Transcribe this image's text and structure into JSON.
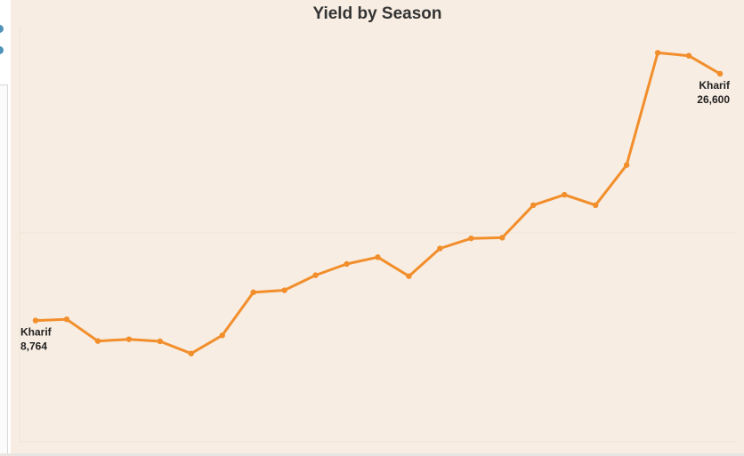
{
  "chart_data": {
    "type": "line",
    "title": "Yield by Season",
    "xlabel": "",
    "ylabel": "",
    "grid": false,
    "ylim": [
      0,
      30000
    ],
    "color": "#f28e2b",
    "x": [
      1,
      2,
      3,
      4,
      5,
      6,
      7,
      8,
      9,
      10,
      11,
      12,
      13,
      14,
      15,
      16,
      17,
      18,
      19,
      20,
      21,
      22,
      23
    ],
    "values": [
      8764,
      8850,
      7280,
      7410,
      7260,
      6380,
      7690,
      10800,
      10950,
      12040,
      12850,
      13340,
      11970,
      13970,
      14700,
      14750,
      17100,
      17850,
      17100,
      20000,
      28110,
      27900,
      26600
    ],
    "annotations": [
      {
        "index": 0,
        "label": "Kharif",
        "value_text": "8,764"
      },
      {
        "index": 22,
        "label": "Kharif",
        "value_text": "26,600"
      }
    ]
  }
}
